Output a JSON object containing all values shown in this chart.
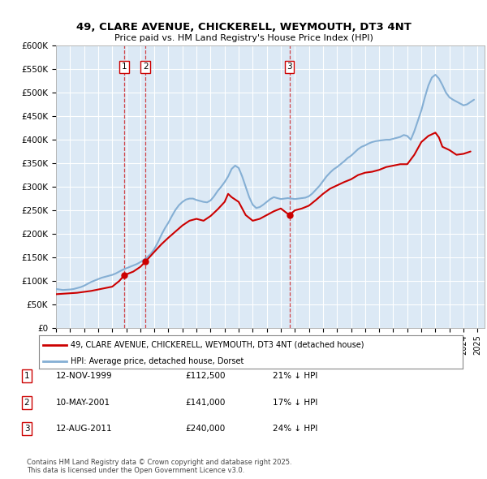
{
  "title": "49, CLARE AVENUE, CHICKERELL, WEYMOUTH, DT3 4NT",
  "subtitle": "Price paid vs. HM Land Registry's House Price Index (HPI)",
  "ylabel_ticks": [
    "£0",
    "£50K",
    "£100K",
    "£150K",
    "£200K",
    "£250K",
    "£300K",
    "£350K",
    "£400K",
    "£450K",
    "£500K",
    "£550K",
    "£600K"
  ],
  "ylim": [
    0,
    600000
  ],
  "xlim_start": 1995.0,
  "xlim_end": 2025.5,
  "bg_color": "#dce9f5",
  "red_color": "#cc0000",
  "blue_color": "#85afd4",
  "vline_color": "#cc0000",
  "legend_label_red": "49, CLARE AVENUE, CHICKERELL, WEYMOUTH, DT3 4NT (detached house)",
  "legend_label_blue": "HPI: Average price, detached house, Dorset",
  "transactions": [
    {
      "label": "1",
      "date_str": "12-NOV-1999",
      "date_x": 1999.87,
      "price": 112500,
      "pct": "21%",
      "dir": "↓"
    },
    {
      "label": "2",
      "date_str": "10-MAY-2001",
      "date_x": 2001.36,
      "price": 141000,
      "pct": "17%",
      "dir": "↓"
    },
    {
      "label": "3",
      "date_str": "12-AUG-2011",
      "date_x": 2011.61,
      "price": 240000,
      "pct": "24%",
      "dir": "↓"
    }
  ],
  "footer": "Contains HM Land Registry data © Crown copyright and database right 2025.\nThis data is licensed under the Open Government Licence v3.0.",
  "hpi_data": {
    "x": [
      1995.0,
      1995.25,
      1995.5,
      1995.75,
      1996.0,
      1996.25,
      1996.5,
      1996.75,
      1997.0,
      1997.25,
      1997.5,
      1997.75,
      1998.0,
      1998.25,
      1998.5,
      1998.75,
      1999.0,
      1999.25,
      1999.5,
      1999.75,
      2000.0,
      2000.25,
      2000.5,
      2000.75,
      2001.0,
      2001.25,
      2001.5,
      2001.75,
      2002.0,
      2002.25,
      2002.5,
      2002.75,
      2003.0,
      2003.25,
      2003.5,
      2003.75,
      2004.0,
      2004.25,
      2004.5,
      2004.75,
      2005.0,
      2005.25,
      2005.5,
      2005.75,
      2006.0,
      2006.25,
      2006.5,
      2006.75,
      2007.0,
      2007.25,
      2007.5,
      2007.75,
      2008.0,
      2008.25,
      2008.5,
      2008.75,
      2009.0,
      2009.25,
      2009.5,
      2009.75,
      2010.0,
      2010.25,
      2010.5,
      2010.75,
      2011.0,
      2011.25,
      2011.5,
      2011.75,
      2012.0,
      2012.25,
      2012.5,
      2012.75,
      2013.0,
      2013.25,
      2013.5,
      2013.75,
      2014.0,
      2014.25,
      2014.5,
      2014.75,
      2015.0,
      2015.25,
      2015.5,
      2015.75,
      2016.0,
      2016.25,
      2016.5,
      2016.75,
      2017.0,
      2017.25,
      2017.5,
      2017.75,
      2018.0,
      2018.25,
      2018.5,
      2018.75,
      2019.0,
      2019.25,
      2019.5,
      2019.75,
      2020.0,
      2020.25,
      2020.5,
      2020.75,
      2021.0,
      2021.25,
      2021.5,
      2021.75,
      2022.0,
      2022.25,
      2022.5,
      2022.75,
      2023.0,
      2023.25,
      2023.5,
      2023.75,
      2024.0,
      2024.25,
      2024.5,
      2024.75
    ],
    "y": [
      83000,
      82000,
      81000,
      81500,
      82000,
      83000,
      85000,
      87000,
      90000,
      94000,
      98000,
      101000,
      104000,
      107000,
      109000,
      111000,
      113000,
      116000,
      120000,
      124000,
      127000,
      130000,
      133000,
      136000,
      140000,
      145000,
      151000,
      158000,
      168000,
      182000,
      198000,
      212000,
      224000,
      238000,
      251000,
      261000,
      268000,
      273000,
      275000,
      275000,
      272000,
      270000,
      268000,
      267000,
      271000,
      280000,
      291000,
      300000,
      310000,
      322000,
      338000,
      345000,
      340000,
      322000,
      300000,
      278000,
      262000,
      255000,
      257000,
      262000,
      268000,
      274000,
      278000,
      276000,
      274000,
      275000,
      276000,
      275000,
      274000,
      275000,
      276000,
      277000,
      280000,
      286000,
      294000,
      302000,
      312000,
      322000,
      330000,
      337000,
      342000,
      348000,
      354000,
      361000,
      366000,
      373000,
      380000,
      385000,
      388000,
      392000,
      395000,
      397000,
      398000,
      399000,
      400000,
      400000,
      402000,
      404000,
      406000,
      410000,
      408000,
      400000,
      418000,
      440000,
      462000,
      490000,
      515000,
      532000,
      538000,
      530000,
      516000,
      500000,
      490000,
      485000,
      481000,
      477000,
      473000,
      475000,
      480000,
      485000
    ]
  },
  "property_data": {
    "x": [
      1995.0,
      1995.5,
      1996.0,
      1996.5,
      1997.0,
      1997.5,
      1998.0,
      1998.5,
      1999.0,
      1999.5,
      1999.87,
      2000.5,
      2001.0,
      2001.36,
      2002.0,
      2002.5,
      2003.0,
      2003.5,
      2004.0,
      2004.5,
      2005.0,
      2005.5,
      2006.0,
      2006.5,
      2007.0,
      2007.25,
      2007.5,
      2008.0,
      2008.5,
      2009.0,
      2009.5,
      2010.0,
      2010.5,
      2011.0,
      2011.61,
      2012.0,
      2012.5,
      2013.0,
      2013.5,
      2014.0,
      2014.5,
      2015.0,
      2015.5,
      2016.0,
      2016.5,
      2017.0,
      2017.5,
      2018.0,
      2018.5,
      2019.0,
      2019.5,
      2020.0,
      2020.5,
      2021.0,
      2021.5,
      2022.0,
      2022.25,
      2022.5,
      2023.0,
      2023.5,
      2024.0,
      2024.5
    ],
    "y": [
      72000,
      73000,
      74000,
      75000,
      77000,
      79000,
      82000,
      85000,
      88000,
      100000,
      112500,
      120000,
      130000,
      141000,
      162000,
      178000,
      192000,
      205000,
      218000,
      228000,
      232000,
      228000,
      238000,
      252000,
      268000,
      285000,
      278000,
      268000,
      240000,
      228000,
      232000,
      240000,
      248000,
      254000,
      240000,
      250000,
      254000,
      260000,
      272000,
      285000,
      296000,
      303000,
      310000,
      316000,
      325000,
      330000,
      332000,
      336000,
      342000,
      345000,
      348000,
      348000,
      368000,
      395000,
      408000,
      415000,
      405000,
      385000,
      378000,
      368000,
      370000,
      375000
    ]
  }
}
